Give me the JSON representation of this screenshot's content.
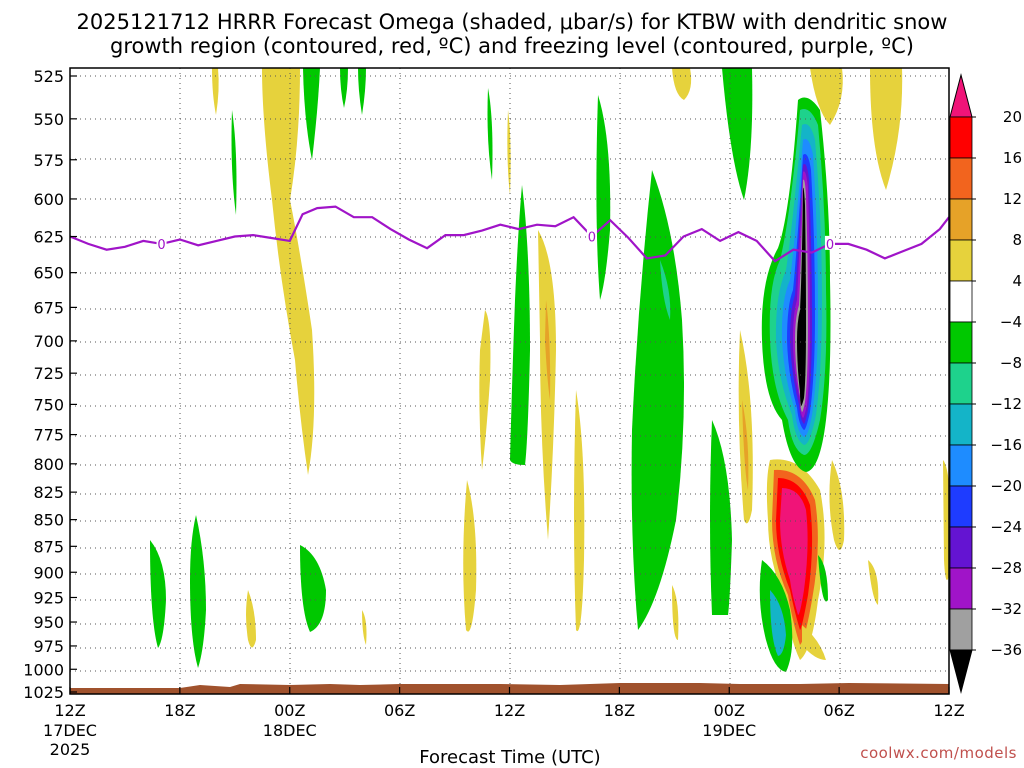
{
  "chart_data": {
    "type": "heatmap",
    "title_line1": "2025121712 HRRR Forecast Omega (shaded, μbar/s) for KTBW with dendritic snow",
    "title_line2": "growth region (contoured, red, ºC) and freezing level (contoured, purple, ºC)",
    "xlabel": "Forecast Time (UTC)",
    "ylabel": "",
    "credit": "coolwx.com/models",
    "x_hours": [
      0,
      48
    ],
    "x_ticks": [
      {
        "hour": 0,
        "line1": "12Z",
        "line2": "17DEC",
        "line3": "2025"
      },
      {
        "hour": 6,
        "line1": "18Z",
        "line2": "",
        "line3": ""
      },
      {
        "hour": 12,
        "line1": "00Z",
        "line2": "18DEC",
        "line3": ""
      },
      {
        "hour": 18,
        "line1": "06Z",
        "line2": "",
        "line3": ""
      },
      {
        "hour": 24,
        "line1": "12Z",
        "line2": "",
        "line3": ""
      },
      {
        "hour": 30,
        "line1": "18Z",
        "line2": "",
        "line3": ""
      },
      {
        "hour": 36,
        "line1": "00Z",
        "line2": "19DEC",
        "line3": ""
      },
      {
        "hour": 42,
        "line1": "06Z",
        "line2": "",
        "line3": ""
      },
      {
        "hour": 48,
        "line1": "12Z",
        "line2": "",
        "line3": ""
      }
    ],
    "y_levels": [
      "525",
      "550",
      "575",
      "600",
      "625",
      "650",
      "675",
      "700",
      "725",
      "750",
      "775",
      "800",
      "825",
      "850",
      "875",
      "900",
      "925",
      "950",
      "975",
      "1000",
      "1025"
    ],
    "y_range": [
      525,
      1025
    ],
    "colorbar": {
      "labels": [
        "20",
        "16",
        "12",
        "8",
        "4",
        "−4",
        "−8",
        "−12",
        "−16",
        "−20",
        "−24",
        "−28",
        "−32",
        "−36"
      ],
      "colors": [
        "#ff0000",
        "#f2641e",
        "#e6a228",
        "#e6d23c",
        "#ffffff",
        "#00c800",
        "#1ed28c",
        "#14b4c8",
        "#1e8cff",
        "#1e3cff",
        "#6414d2",
        "#a014c8",
        "#a0a0a0",
        "#000000"
      ],
      "top_arrow_color": "#f01478",
      "bottom_arrow_color": "#000000"
    },
    "freezing_level": {
      "label": "0",
      "hours": [
        0,
        1,
        2,
        3,
        4,
        5,
        6,
        7,
        8,
        9,
        10,
        11,
        12,
        12.7,
        13.5,
        14.5,
        15.5,
        16.5,
        17.5,
        18.5,
        19.5,
        20.5,
        21.5,
        22.5,
        23.5,
        24.5,
        25.5,
        26.5,
        27.5,
        28.5,
        29.5,
        30.5,
        31.5,
        32.5,
        33.5,
        34.5,
        35.5,
        36.5,
        37.5,
        38.5,
        39.5,
        40.5,
        41.5,
        42.5,
        43.5,
        44.5,
        45.5,
        46.5,
        47.5,
        48
      ],
      "pressure": [
        625,
        630,
        634,
        632,
        628,
        630,
        627,
        631,
        628,
        625,
        624,
        626,
        628,
        610,
        606,
        605,
        612,
        612,
        620,
        627,
        633,
        624,
        624,
        621,
        617,
        620,
        617,
        618,
        612,
        625,
        614,
        626,
        640,
        638,
        625,
        620,
        628,
        622,
        628,
        642,
        634,
        636,
        630,
        630,
        634,
        640,
        635,
        630,
        620,
        612
      ]
    },
    "omega_features": [
      {
        "name": "strong-updraft-core",
        "center_hour": 40.1,
        "center_hpa": 700,
        "min_value": -36,
        "sign": "negative"
      },
      {
        "name": "strong-sinking-lower",
        "center_hour": 39.6,
        "center_hpa": 870,
        "max_value": 24,
        "sign": "positive"
      }
    ]
  }
}
